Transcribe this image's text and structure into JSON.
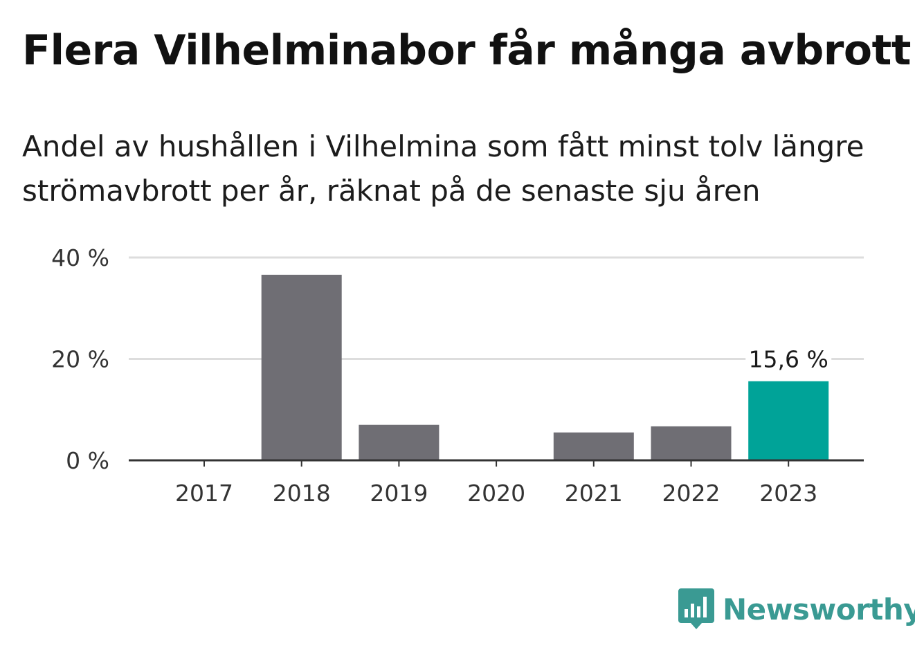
{
  "header": {
    "title": "Flera Vilhelminabor får många avbrott",
    "subtitle": "Andel av hushållen i Vilhelmina som fått minst tolv längre strömavbrott per år, räknat på de senaste sju åren"
  },
  "brand": {
    "name": "Newsworthy",
    "color": "#3a9a93",
    "icon": "bar-chart-speech-bubble-icon"
  },
  "chart_data": {
    "type": "bar",
    "title": "Flera Vilhelminabor får många avbrott",
    "subtitle": "Andel av hushållen i Vilhelmina som fått minst tolv längre strömavbrott per år, räknat på de senaste sju åren",
    "xlabel": "",
    "ylabel": "",
    "categories": [
      "2017",
      "2018",
      "2019",
      "2020",
      "2021",
      "2022",
      "2023"
    ],
    "values": [
      0,
      36.6,
      7.0,
      0,
      5.5,
      6.7,
      15.6
    ],
    "highlight_index": 6,
    "highlight_label": "15,6 %",
    "ylim": [
      0,
      40
    ],
    "yticks": [
      0,
      20,
      40
    ],
    "ytick_labels": [
      "0 %",
      "20 %",
      "40 %"
    ],
    "grid": true,
    "colors": {
      "bar": "#6f6e74",
      "highlight": "#00a398",
      "grid": "#dddddd",
      "axis": "#333333"
    }
  }
}
